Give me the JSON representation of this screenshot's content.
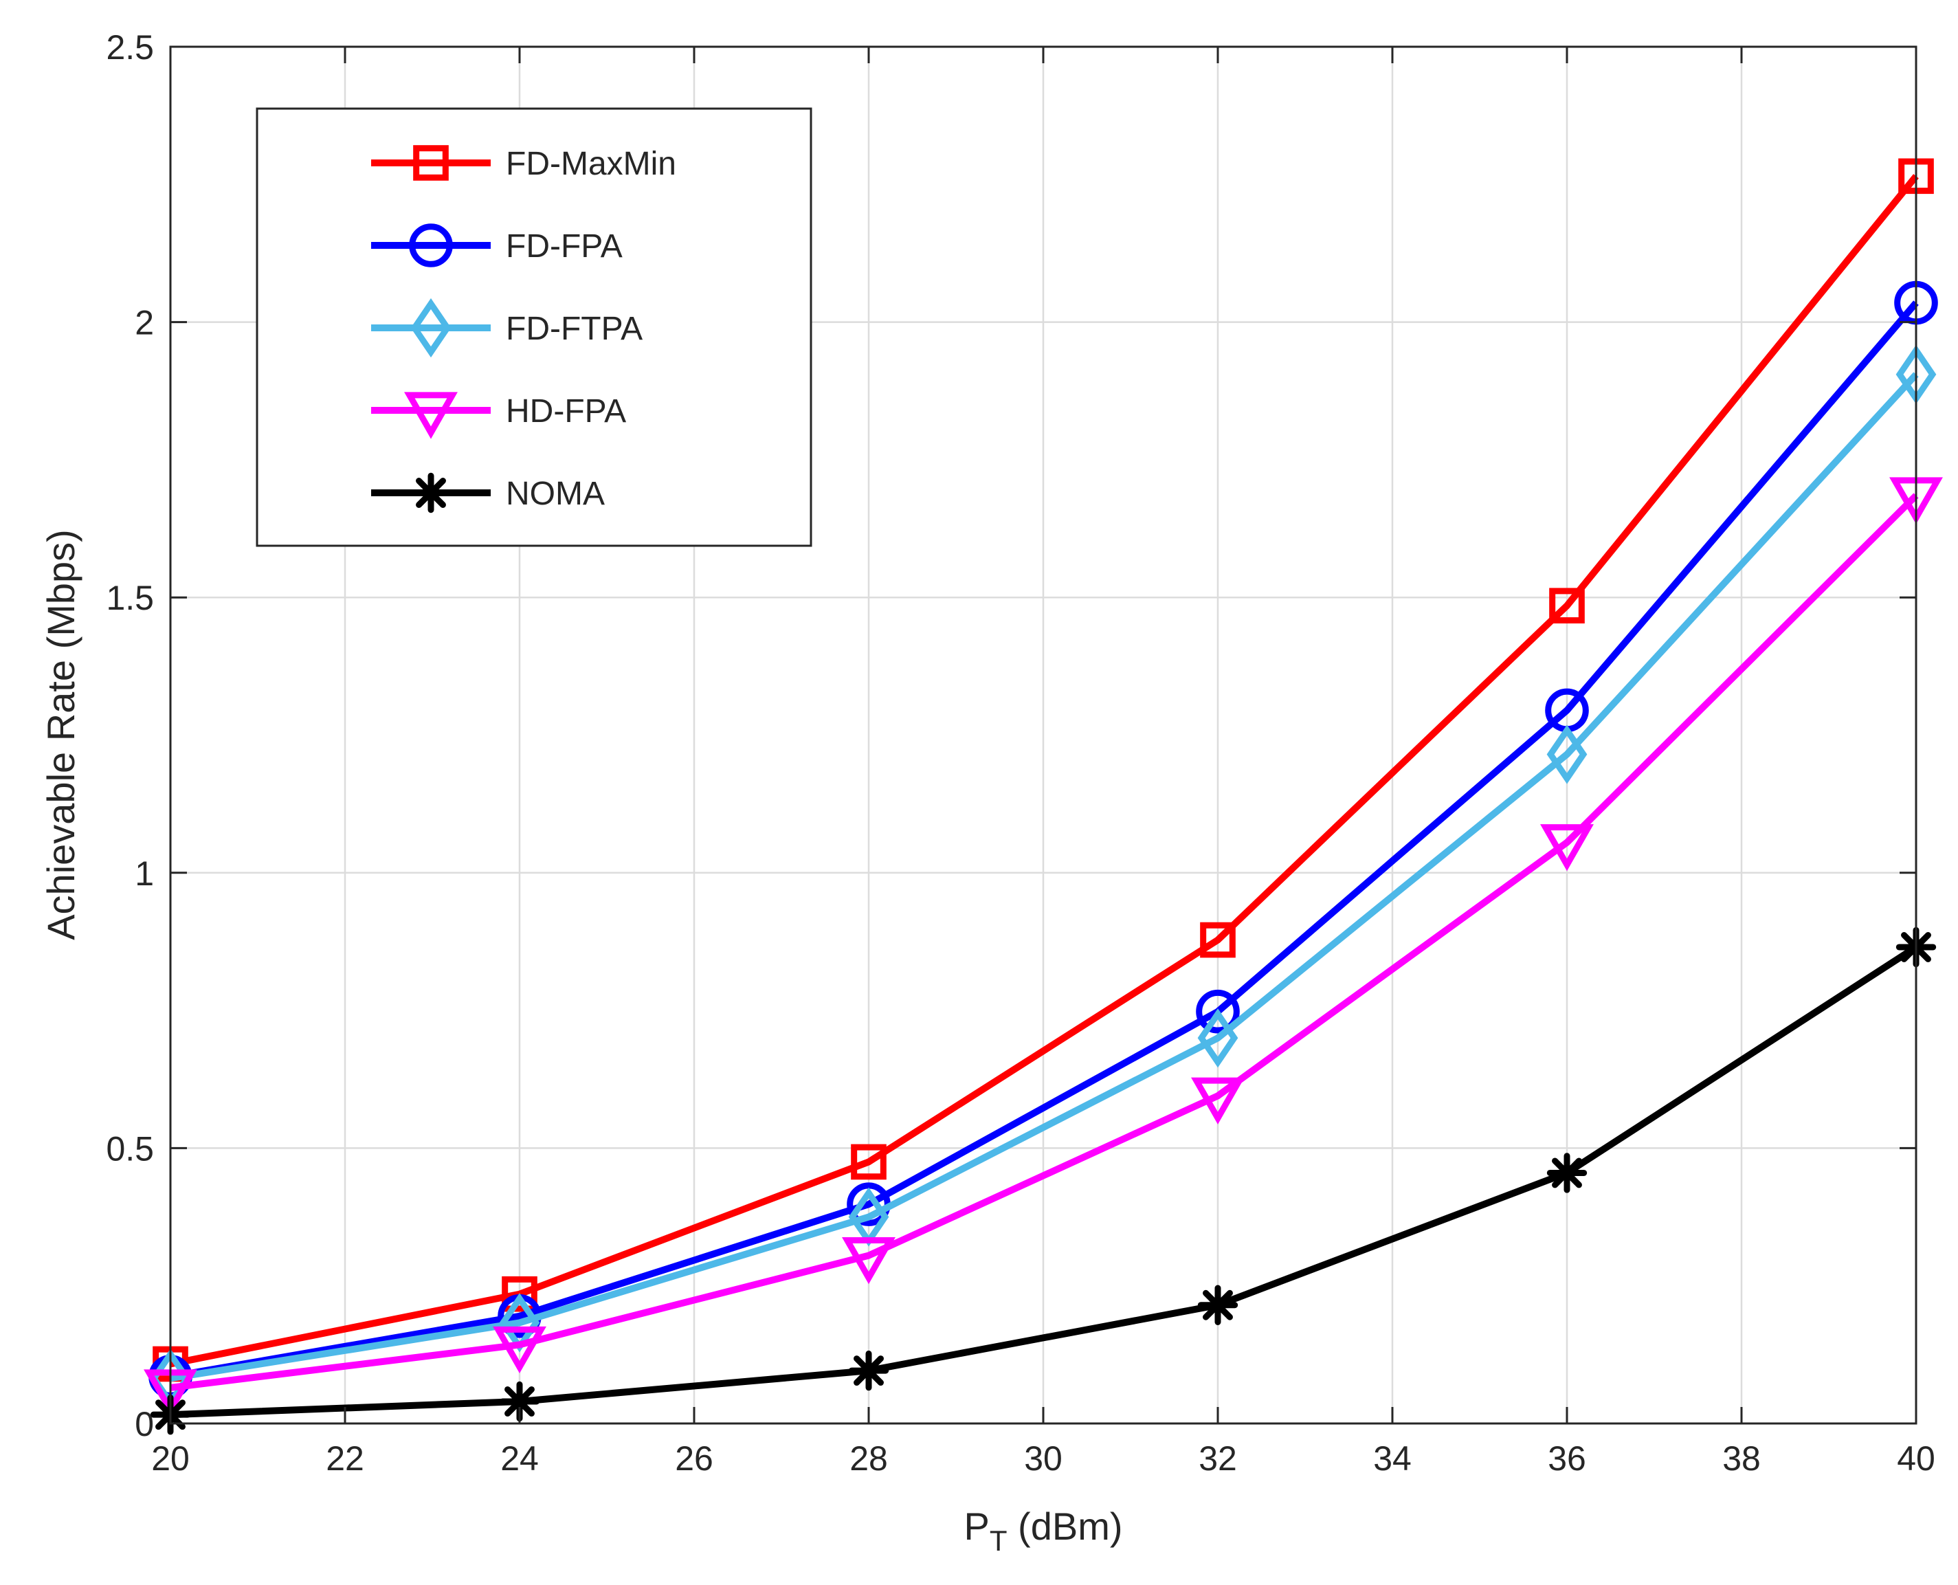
{
  "chart_data": {
    "type": "line",
    "title": "",
    "xlabel_main": "P",
    "xlabel_sub": "T",
    "xlabel_unit": " (dBm)",
    "ylabel": "Achievable Rate (Mbps)",
    "xlim": [
      20,
      40
    ],
    "ylim": [
      0,
      2.5
    ],
    "xticks": [
      20,
      22,
      24,
      26,
      28,
      30,
      32,
      34,
      36,
      38,
      40
    ],
    "xtick_labels": [
      "20",
      "22",
      "24",
      "26",
      "28",
      "30",
      "32",
      "34",
      "36",
      "38",
      "40"
    ],
    "yticks": [
      0,
      0.5,
      1,
      1.5,
      2,
      2.5
    ],
    "ytick_labels": [
      "0",
      "0.5",
      "1",
      "1.5",
      "2",
      "2.5"
    ],
    "grid": true,
    "legend_position": "top-left",
    "x": [
      20,
      24,
      28,
      32,
      36,
      40
    ],
    "series": [
      {
        "name": "FD-MaxMin",
        "color": "#ff0000",
        "marker": "square",
        "values": [
          0.108,
          0.235,
          0.475,
          0.878,
          1.485,
          2.265
        ]
      },
      {
        "name": "FD-FPA",
        "color": "#0000ff",
        "marker": "circle",
        "values": [
          0.085,
          0.195,
          0.398,
          0.748,
          1.295,
          2.035
        ]
      },
      {
        "name": "FD-FTPA",
        "color": "#4db8e8",
        "marker": "diamond",
        "values": [
          0.082,
          0.183,
          0.375,
          0.7,
          1.215,
          1.905
        ]
      },
      {
        "name": "HD-FPA",
        "color": "#ff00ff",
        "marker": "triangle-down",
        "values": [
          0.065,
          0.143,
          0.305,
          0.595,
          1.055,
          1.685
        ]
      },
      {
        "name": "NOMA",
        "color": "#000000",
        "marker": "asterisk",
        "values": [
          0.016,
          0.04,
          0.096,
          0.215,
          0.455,
          0.865
        ]
      }
    ]
  }
}
